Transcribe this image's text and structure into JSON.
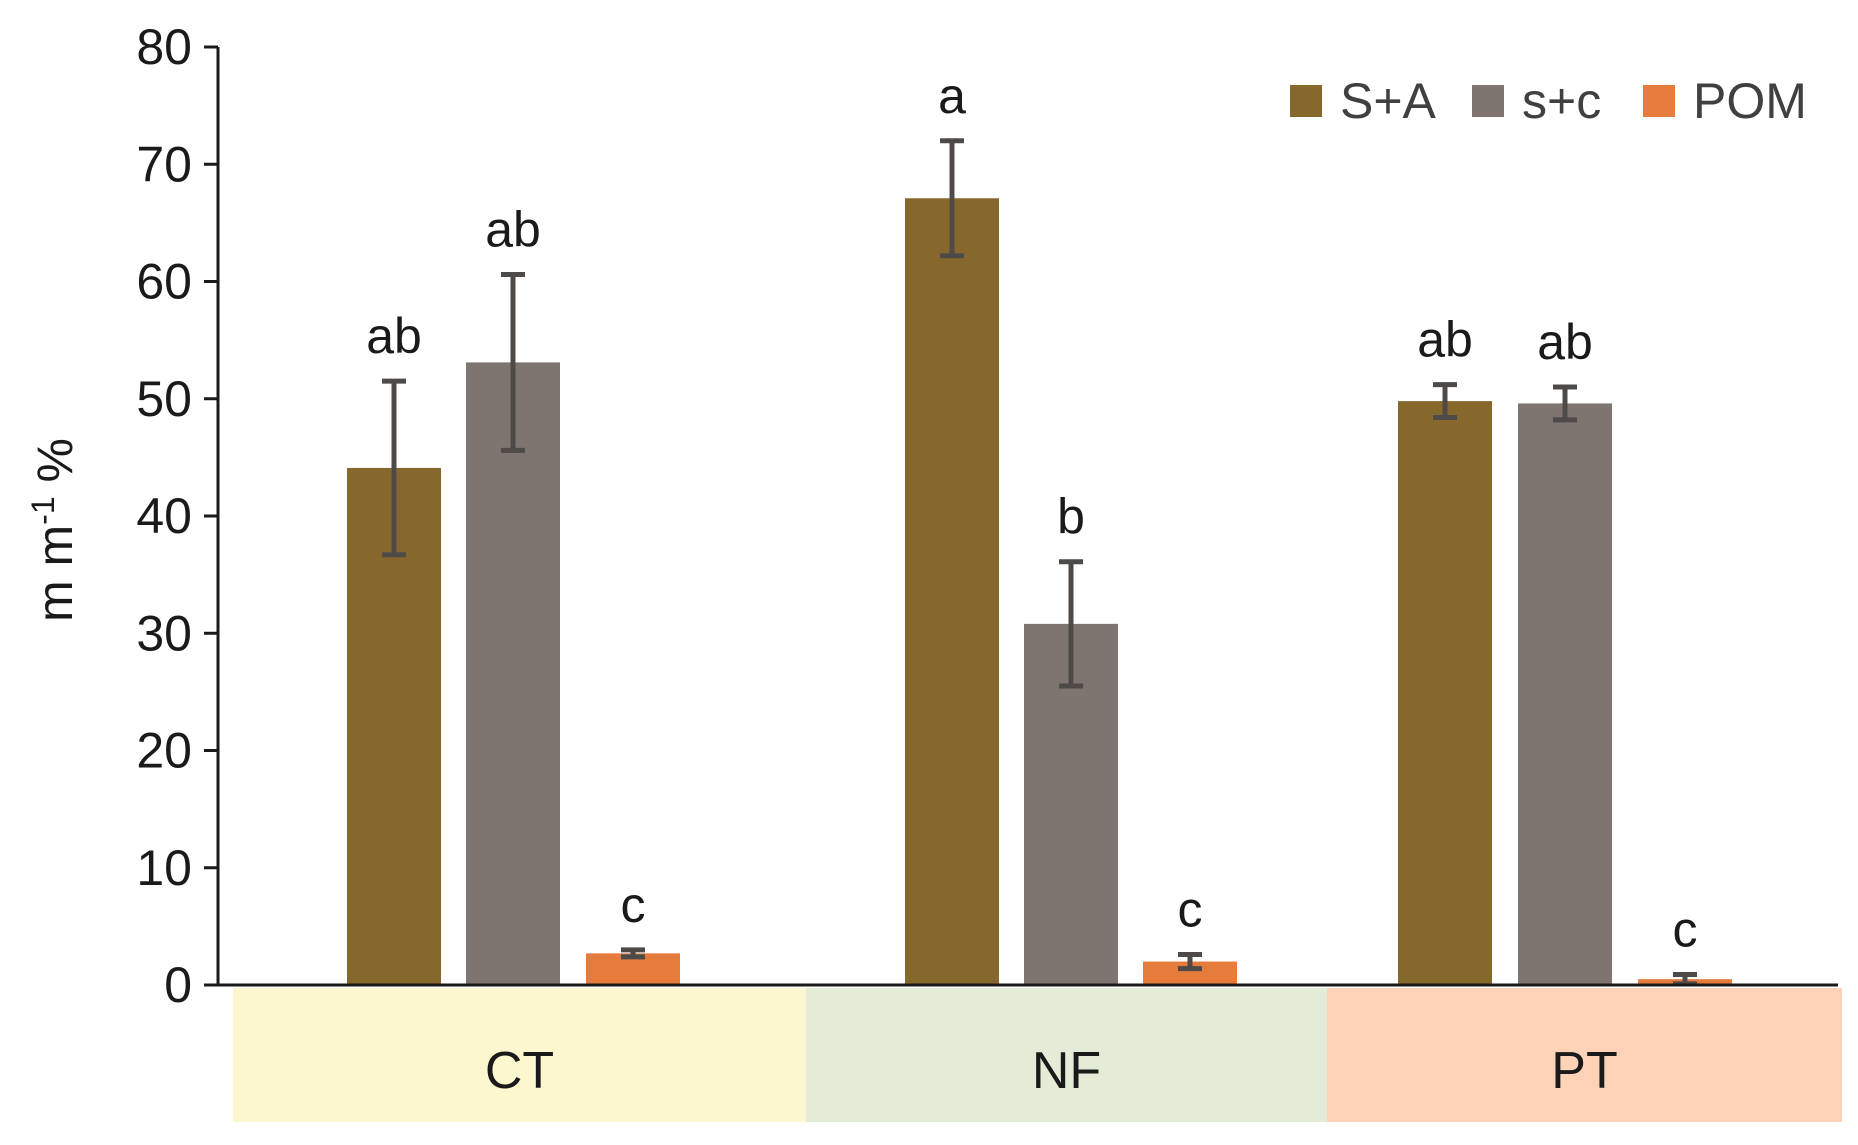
{
  "chart_data": {
    "type": "bar",
    "title": "",
    "xlabel": "",
    "ylabel": {
      "prefix": "m m",
      "superscript": "-1",
      "suffix": " %"
    },
    "ylim": [
      0,
      80
    ],
    "yticks": [
      "0",
      "10",
      "20",
      "30",
      "40",
      "50",
      "60",
      "70",
      "80"
    ],
    "grid": false,
    "legend_position": "top-right",
    "categories": [
      "CT",
      "NF",
      "PT"
    ],
    "category_colors": [
      "#fdf7d0",
      "#e3ecd7",
      "#fdd2b7"
    ],
    "series": [
      {
        "name": "S+A",
        "color": "#86682d",
        "values": [
          44.1,
          67.1,
          49.8
        ],
        "errors": [
          7.4,
          4.9,
          1.4
        ],
        "letters": [
          "ab",
          "a",
          "ab"
        ]
      },
      {
        "name": "s+c",
        "color": "#7e7470",
        "values": [
          53.1,
          30.8,
          49.6
        ],
        "errors": [
          7.5,
          5.3,
          1.4
        ],
        "letters": [
          "ab",
          "b",
          "ab"
        ]
      },
      {
        "name": "POM",
        "color": "#e67c3b",
        "values": [
          2.7,
          2.0,
          0.5
        ],
        "errors": [
          0.3,
          0.6,
          0.4
        ],
        "letters": [
          "c",
          "c",
          "c"
        ]
      }
    ]
  }
}
